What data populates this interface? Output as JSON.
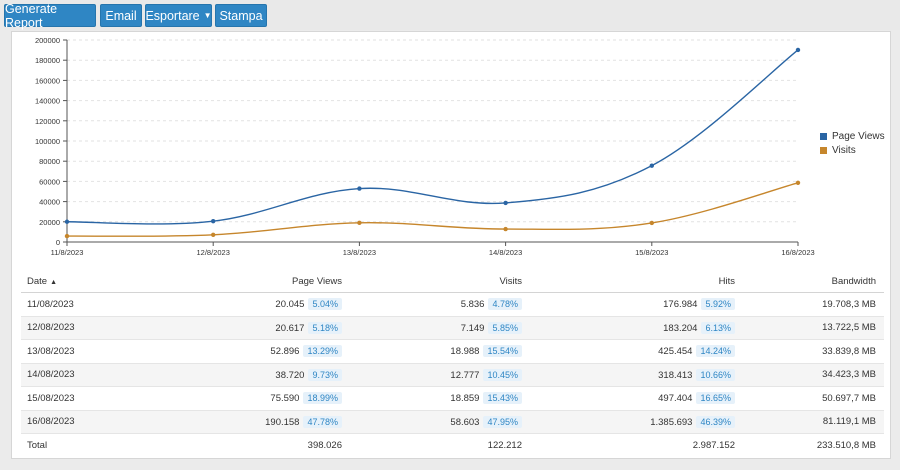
{
  "toolbar": {
    "buttons": [
      {
        "label": "Generate Report"
      },
      {
        "label": "Email"
      },
      {
        "label": "Esportare",
        "dropdown": true
      },
      {
        "label": "Stampa"
      }
    ]
  },
  "colors": {
    "button": "#2f86c4",
    "page_views": "#2a65a4",
    "visits": "#c6862c"
  },
  "chart_data": {
    "type": "line",
    "x": [
      "11/8/2023",
      "12/8/2023",
      "13/8/2023",
      "14/8/2023",
      "15/8/2023",
      "16/8/2023"
    ],
    "series": [
      {
        "name": "Page Views",
        "values": [
          20045,
          20617,
          52896,
          38720,
          75590,
          190158
        ],
        "color": "#2a65a4"
      },
      {
        "name": "Visits",
        "values": [
          5836,
          7149,
          18988,
          12777,
          18859,
          58603
        ],
        "color": "#c6862c"
      }
    ],
    "ylim": [
      0,
      200000
    ],
    "yticks": [
      "0",
      "20000",
      "40000",
      "60000",
      "80000",
      "100000",
      "120000",
      "140000",
      "160000",
      "180000",
      "200000"
    ],
    "grid": true,
    "legend_position": "right"
  },
  "table": {
    "columns": [
      "Date",
      "Page Views",
      "Visits",
      "Hits",
      "Bandwidth"
    ],
    "rows": [
      {
        "date": "11/08/2023",
        "page_views": "20.045",
        "page_views_pct": "5.04%",
        "visits": "5.836",
        "visits_pct": "4.78%",
        "hits": "176.984",
        "hits_pct": "5.92%",
        "bandwidth": "19.708,3 MB"
      },
      {
        "date": "12/08/2023",
        "page_views": "20.617",
        "page_views_pct": "5.18%",
        "visits": "7.149",
        "visits_pct": "5.85%",
        "hits": "183.204",
        "hits_pct": "6.13%",
        "bandwidth": "13.722,5 MB"
      },
      {
        "date": "13/08/2023",
        "page_views": "52.896",
        "page_views_pct": "13.29%",
        "visits": "18.988",
        "visits_pct": "15.54%",
        "hits": "425.454",
        "hits_pct": "14.24%",
        "bandwidth": "33.839,8 MB"
      },
      {
        "date": "14/08/2023",
        "page_views": "38.720",
        "page_views_pct": "9.73%",
        "visits": "12.777",
        "visits_pct": "10.45%",
        "hits": "318.413",
        "hits_pct": "10.66%",
        "bandwidth": "34.423,3 MB"
      },
      {
        "date": "15/08/2023",
        "page_views": "75.590",
        "page_views_pct": "18.99%",
        "visits": "18.859",
        "visits_pct": "15.43%",
        "hits": "497.404",
        "hits_pct": "16.65%",
        "bandwidth": "50.697,7 MB"
      },
      {
        "date": "16/08/2023",
        "page_views": "190.158",
        "page_views_pct": "47.78%",
        "visits": "58.603",
        "visits_pct": "47.95%",
        "hits": "1.385.693",
        "hits_pct": "46.39%",
        "bandwidth": "81.119,1 MB"
      }
    ],
    "total": {
      "label": "Total",
      "page_views": "398.026",
      "visits": "122.212",
      "hits": "2.987.152",
      "bandwidth": "233.510,8 MB"
    }
  }
}
